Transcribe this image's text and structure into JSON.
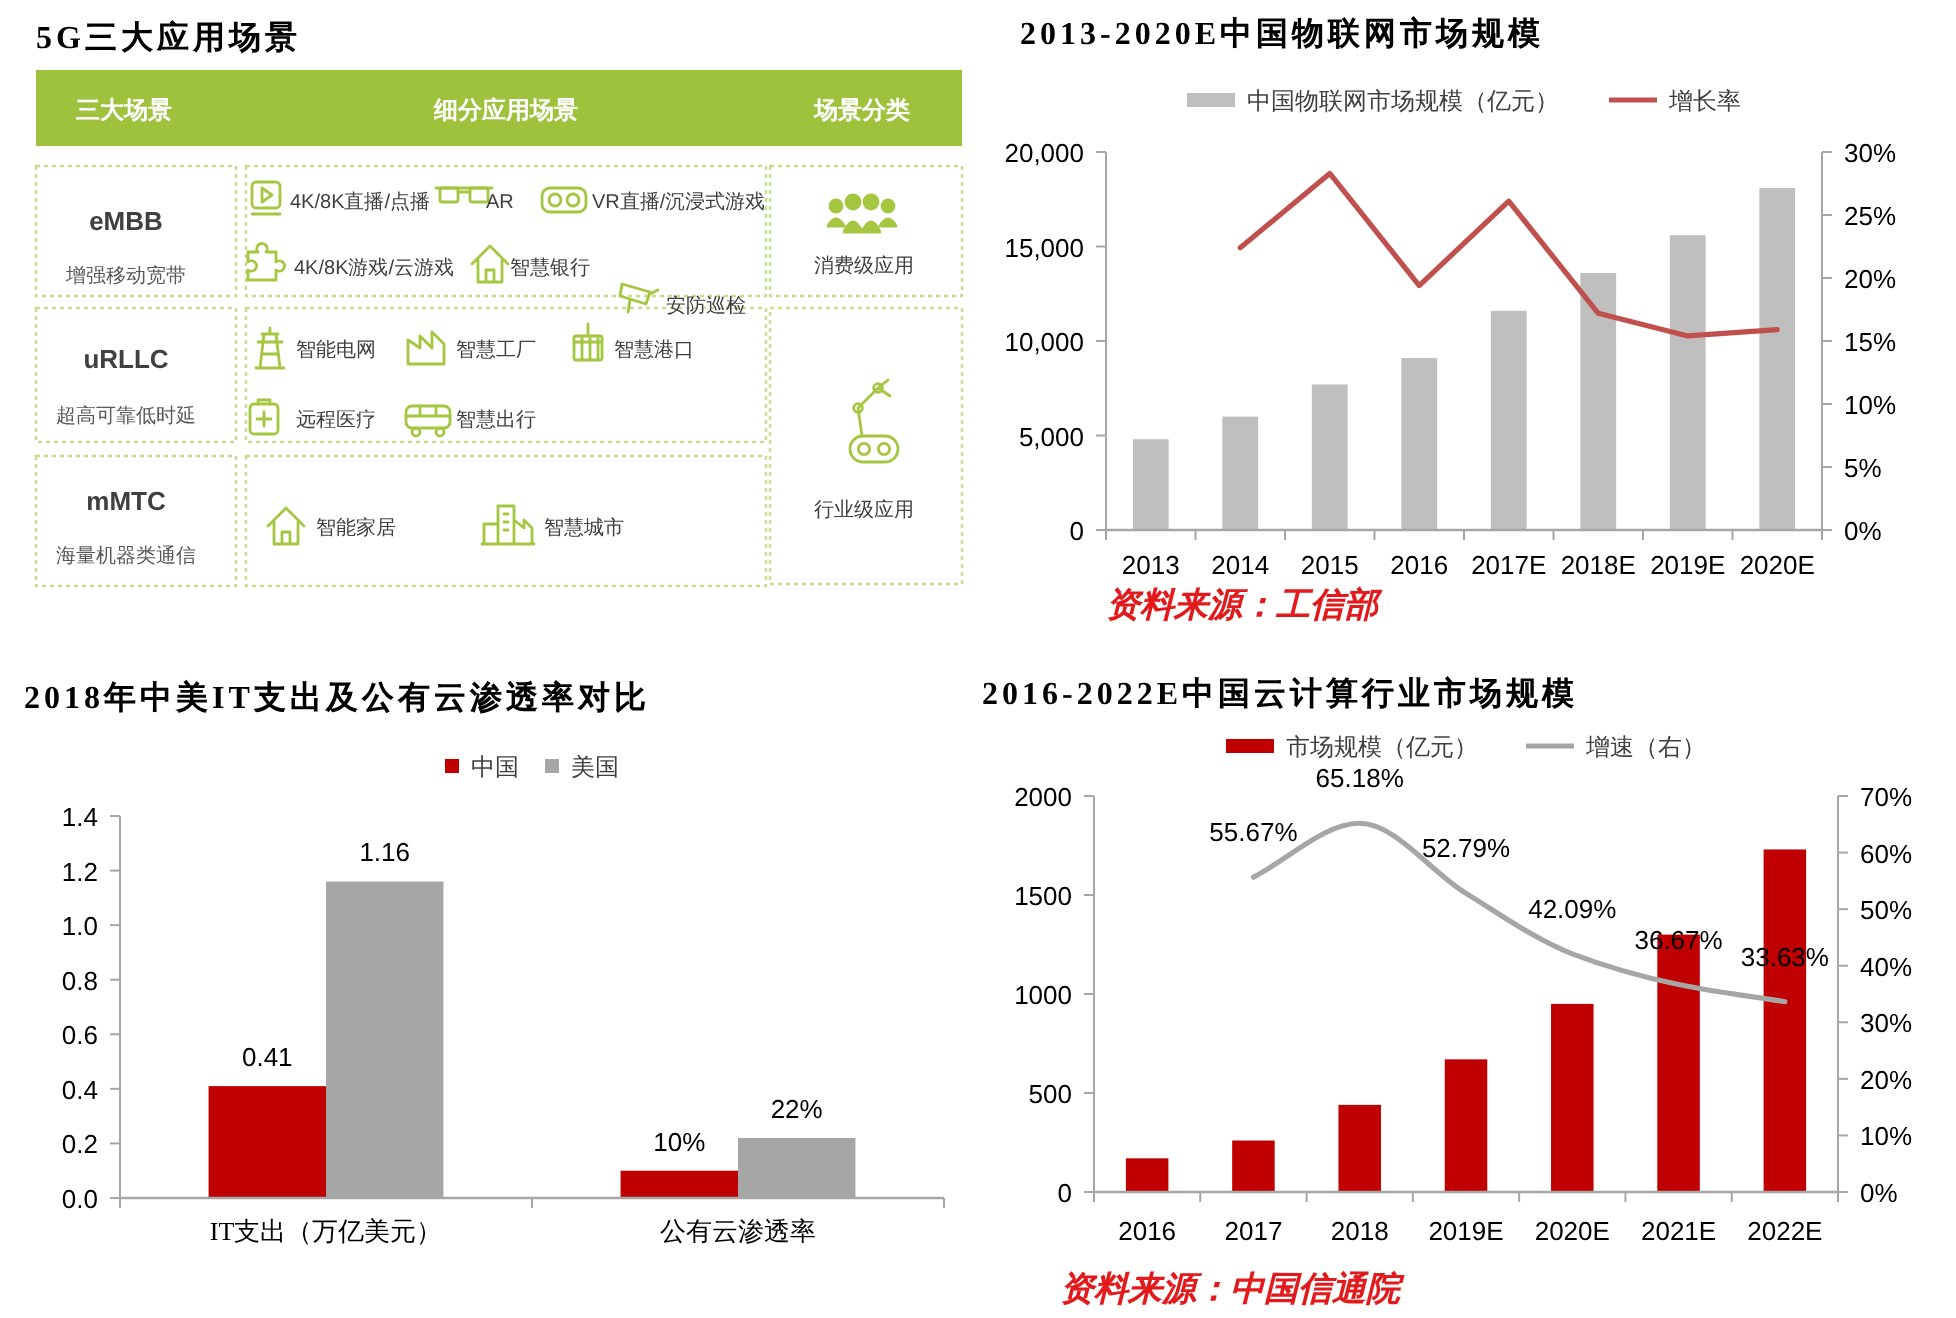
{
  "chart_data": [
    {
      "type": "other",
      "title": "5G三大应用场景",
      "annotations": [
        "三大场景",
        "细分应用场景",
        "场景分类",
        "eMBB",
        "增强移动宽带",
        "4K/8K直播/点播",
        "AR",
        "VR直播/沉浸式游戏",
        "4K/8K游戏/云游戏",
        "智慧银行",
        "安防巡检",
        "消费级应用",
        "uRLLC",
        "超高可靠低时延",
        "智能电网",
        "智慧工厂",
        "智慧港口",
        "远程医疗",
        "智慧出行",
        "mMTC",
        "海量机器类通信",
        "智能家居",
        "智慧城市",
        "行业级应用"
      ]
    },
    {
      "type": "bar",
      "title": "2013-2020E中国物联网市场规模",
      "categories": [
        "2013",
        "2014",
        "2015",
        "2016",
        "2017E",
        "2018E",
        "2019E",
        "2020E"
      ],
      "series": [
        {
          "name": "中国物联网市场规模（亿元）",
          "color": "#bfbfbf",
          "values": [
            4800,
            6000,
            7700,
            9100,
            11600,
            13600,
            15600,
            18100
          ]
        },
        {
          "name": "增长率",
          "type": "line",
          "axis": "y2",
          "color": "#c0504d",
          "values": [
            null,
            22.4,
            28.3,
            19.4,
            26.1,
            17.2,
            15.4,
            15.9
          ]
        }
      ],
      "ylim": [
        0,
        20000
      ],
      "yticks": [
        0,
        {
          "value": 5000,
          "label": "5,000"
        },
        {
          "value": 10000,
          "label": "10,000"
        },
        {
          "value": 15000,
          "label": "15,000"
        },
        {
          "value": 20000,
          "label": "20,000"
        }
      ],
      "y2lim": [
        0,
        30
      ],
      "y2ticks": [
        {
          "value": 0,
          "label": "0%"
        },
        {
          "value": 5,
          "label": "5%"
        },
        {
          "value": 10,
          "label": "10%"
        },
        {
          "value": 15,
          "label": "15%"
        },
        {
          "value": 20,
          "label": "20%"
        },
        {
          "value": 25,
          "label": "25%"
        },
        {
          "value": 30,
          "label": "30%"
        }
      ],
      "legend": "top",
      "annotations": [
        "资料来源：工信部"
      ]
    },
    {
      "type": "bar",
      "title": "2018年中美IT支出及公有云渗透率对比",
      "categories": [
        "IT支出（万亿美元）",
        "公有云渗透率"
      ],
      "series": [
        {
          "name": "中国",
          "color": "#c00000",
          "values": [
            0.41,
            0.1
          ],
          "value_labels": [
            "0.41",
            "10%"
          ]
        },
        {
          "name": "美国",
          "color": "#a6a6a6",
          "values": [
            1.16,
            0.22
          ],
          "value_labels": [
            "1.16",
            "22%"
          ]
        }
      ],
      "ylim": [
        0,
        1.4
      ],
      "yticks": [
        {
          "value": 0,
          "label": "0.0"
        },
        0.2,
        0.4,
        0.6,
        0.8,
        {
          "value": 1,
          "label": "1.0"
        },
        1.2,
        1.4
      ],
      "legend": "top"
    },
    {
      "type": "bar",
      "title": "2016-2022E中国云计算行业市场规模",
      "categories": [
        "2016",
        "2017",
        "2018",
        "2019E",
        "2020E",
        "2021E",
        "2022E"
      ],
      "series": [
        {
          "name": "市场规模（亿元）",
          "color": "#c00000",
          "values": [
            170,
            260,
            440,
            670,
            950,
            1300,
            1730
          ]
        },
        {
          "name": "增速（右）",
          "type": "line",
          "axis": "y2",
          "color": "#a6a6a6",
          "values": [
            null,
            55.67,
            65.18,
            52.79,
            42.09,
            36.67,
            33.63
          ],
          "value_labels": [
            null,
            "55.67%",
            "65.18%",
            "52.79%",
            "42.09%",
            "36.67%",
            "33.63%"
          ]
        }
      ],
      "ylim": [
        0,
        2000
      ],
      "yticks": [
        0,
        500,
        1000,
        1500,
        2000
      ],
      "y2lim": [
        0,
        70
      ],
      "y2ticks": [
        {
          "value": 0,
          "label": "0%"
        },
        {
          "value": 10,
          "label": "10%"
        },
        {
          "value": 20,
          "label": "20%"
        },
        {
          "value": 30,
          "label": "30%"
        },
        {
          "value": 40,
          "label": "40%"
        },
        {
          "value": 50,
          "label": "50%"
        },
        {
          "value": 60,
          "label": "60%"
        },
        {
          "value": 70,
          "label": "70%"
        }
      ],
      "legend": "top",
      "annotations": [
        "资料来源：中国信通院"
      ]
    }
  ]
}
